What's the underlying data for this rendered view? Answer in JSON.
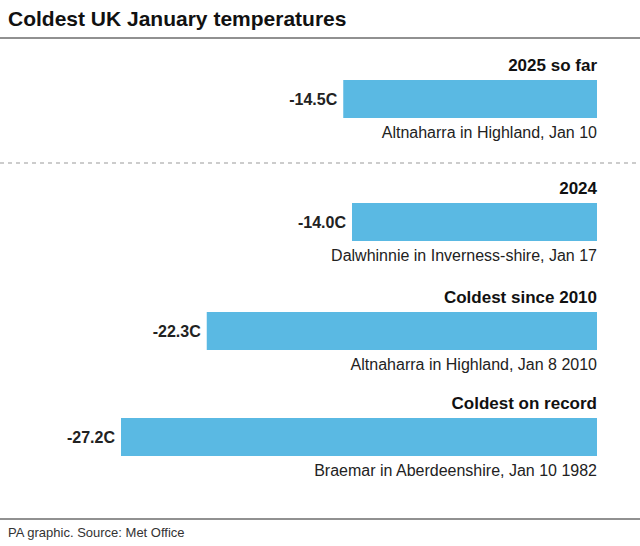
{
  "chart_data": {
    "type": "bar",
    "orientation": "horizontal",
    "title": "Coldest UK January temperatures",
    "categories": [
      "2025 so far",
      "2024",
      "Coldest since 2010",
      "Coldest on record"
    ],
    "values": [
      -14.5,
      -14.0,
      -22.3,
      -27.2
    ],
    "value_labels": [
      "-14.5C",
      "-14.0C",
      "-22.3C",
      "-27.2C"
    ],
    "annotations": [
      "Altnaharra in Highland, Jan 10",
      "Dalwhinnie in Inverness-shire, Jan 17",
      "Altnaharra in Highland, Jan 8 2010",
      "Braemar in Aberdeenshire, Jan 10 1982"
    ],
    "source": "PA graphic. Source: Met Office",
    "color": "#5ab9e3",
    "xlim": [
      -27.2,
      0
    ],
    "grid": false,
    "data_labels": true,
    "tick_labels": false
  }
}
